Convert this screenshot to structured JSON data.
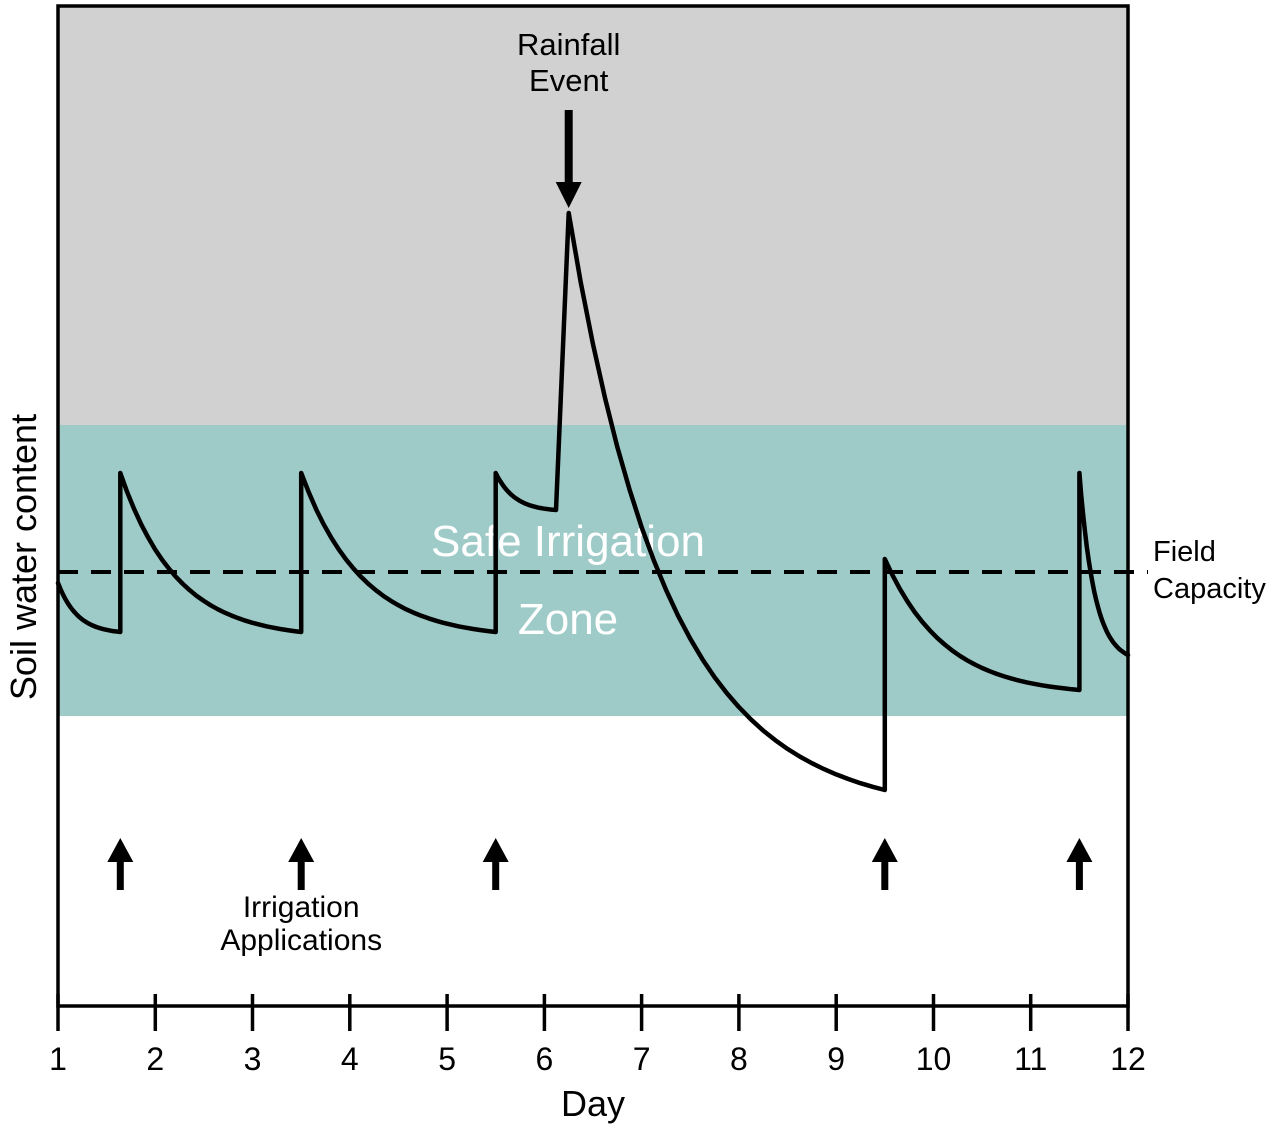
{
  "labels": {
    "rainfall": {
      "line1": "Rainfall",
      "line2": "Event"
    },
    "safe_zone": {
      "line1": "Safe Irrigation",
      "line2": "Zone"
    },
    "field_capacity": {
      "line1": "Field",
      "line2": "Capacity"
    },
    "irrigation": {
      "line1": "Irrigation",
      "line2": "Applications"
    },
    "x_axis_title": "Day",
    "y_axis_title": "Soil water content"
  },
  "colors": {
    "background": "#FFFFFF",
    "gray_zone": "#D1D1D1",
    "safe_zone": "#9ECBC8",
    "curve": "#000000",
    "text": "#000000",
    "zone_label_text": "#FFFFFF"
  },
  "chart_data": {
    "type": "line",
    "title": "",
    "xlabel": "Day",
    "ylabel": "Soil water content",
    "xlim": [
      1,
      12
    ],
    "ylim": [
      0,
      100
    ],
    "x_ticks": [
      1,
      2,
      3,
      4,
      5,
      6,
      7,
      8,
      9,
      10,
      11,
      12
    ],
    "y_ticks": [],
    "grid": false,
    "field_capacity_value": 43.4,
    "safe_zone_value_range": [
      29.0,
      58.1
    ],
    "gray_zone_value_range": [
      58.1,
      100
    ],
    "irrigation_event_days": [
      1.64,
      3.5,
      5.5,
      9.5,
      11.5
    ],
    "rainfall_event_day": 6.25,
    "series_name": "Soil water content",
    "segments": [
      {
        "type": "decay",
        "from": [
          1.0,
          42.3
        ],
        "to": [
          1.64,
          37.4
        ]
      },
      {
        "type": "spike",
        "at": 1.64,
        "to": 53.3
      },
      {
        "type": "decay",
        "from": [
          1.64,
          53.3
        ],
        "to": [
          3.5,
          37.4
        ]
      },
      {
        "type": "spike",
        "at": 3.5,
        "to": 53.3
      },
      {
        "type": "decay",
        "from": [
          3.5,
          53.3
        ],
        "to": [
          5.5,
          37.4
        ]
      },
      {
        "type": "spike",
        "at": 5.5,
        "to": 53.3
      },
      {
        "type": "decay",
        "from": [
          5.5,
          53.3
        ],
        "to": [
          6.12,
          49.6
        ]
      },
      {
        "type": "rise",
        "from": [
          6.12,
          49.6
        ],
        "to": [
          6.25,
          79.3
        ]
      },
      {
        "type": "decay",
        "from": [
          6.25,
          79.3
        ],
        "to": [
          9.5,
          21.6
        ]
      },
      {
        "type": "spike",
        "at": 9.5,
        "to": 44.7
      },
      {
        "type": "decay",
        "from": [
          9.5,
          44.7
        ],
        "to": [
          11.5,
          31.6
        ]
      },
      {
        "type": "spike",
        "at": 11.5,
        "to": 53.3
      },
      {
        "type": "decay",
        "from": [
          11.5,
          53.3
        ],
        "to": [
          12.0,
          35.1
        ]
      }
    ],
    "key_points": [
      {
        "day": 1.0,
        "value": 42.3,
        "note": "start"
      },
      {
        "day": 1.64,
        "value": 37.4,
        "note": "min before irrigation 1"
      },
      {
        "day": 1.64,
        "value": 53.3,
        "note": "after irrigation 1"
      },
      {
        "day": 3.5,
        "value": 37.4,
        "note": "min before irrigation 2"
      },
      {
        "day": 3.5,
        "value": 53.3,
        "note": "after irrigation 2"
      },
      {
        "day": 5.5,
        "value": 37.4,
        "note": "min before irrigation 3"
      },
      {
        "day": 5.5,
        "value": 53.3,
        "note": "after irrigation 3"
      },
      {
        "day": 6.25,
        "value": 79.3,
        "note": "rainfall peak"
      },
      {
        "day": 9.5,
        "value": 21.6,
        "note": "deep minimum before irrigation 4"
      },
      {
        "day": 9.5,
        "value": 44.7,
        "note": "after irrigation 4"
      },
      {
        "day": 11.5,
        "value": 31.6,
        "note": "min before irrigation 5"
      },
      {
        "day": 11.5,
        "value": 53.3,
        "note": "after irrigation 5"
      },
      {
        "day": 12.0,
        "value": 35.1,
        "note": "end"
      }
    ]
  }
}
